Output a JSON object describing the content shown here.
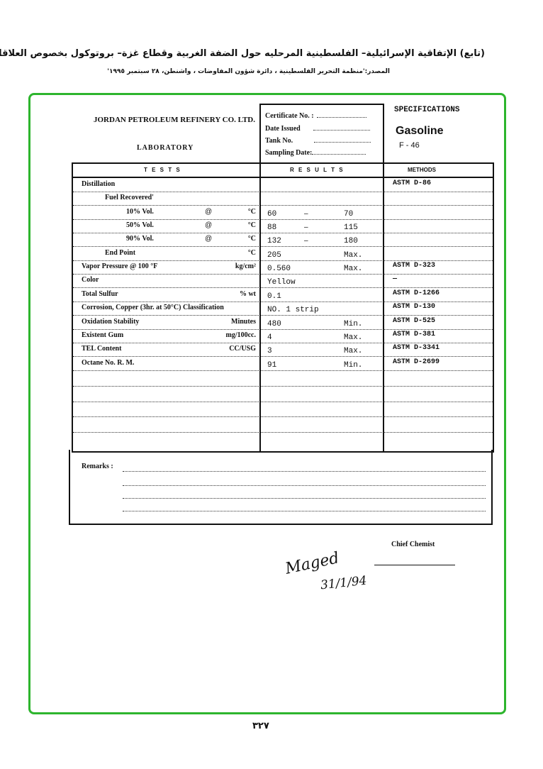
{
  "header": {
    "title_ar": "(تابع) الإتفاقية الإسرائيلية– الفلسطينية المرحليه حول الضفة الغربية وقطاع غزة– بروتوكول بخصوص العلاقات الاقتصادية",
    "source_ar": "المصدر:'منظمة التحرير الفلسطينية ، دائرة شؤون المفاوضات ، واشنطن، ٢٨ سبتمبر ١٩٩٥'"
  },
  "form": {
    "company": "JORDAN PETROLEUM REFINERY CO. LTD.",
    "department": "LABORATORY",
    "certificate_fields": [
      "Certificate No. :",
      "Date Issued",
      "Tank No.",
      "Sampling Date:"
    ],
    "specifications_label": "SPECIFICATIONS",
    "product": "Gasoline",
    "product_code": "F - 46",
    "columns": [
      "T E S T S",
      "R E S U L T S",
      "METHODS"
    ],
    "rows": [
      {
        "test": "Distillation",
        "unit": "",
        "result_low": "",
        "result_high": "",
        "method": "ASTM D-86",
        "indent": 0
      },
      {
        "test": "Fuel Recovered'",
        "unit": "",
        "result_low": "",
        "result_high": "",
        "method": "",
        "indent": 1
      },
      {
        "test": "10% Vol.",
        "at": "@",
        "unit": "°C",
        "result_low": "60",
        "dash": "–",
        "result_high": "70",
        "method": "",
        "indent": 2
      },
      {
        "test": "50% Vol.",
        "at": "@",
        "unit": "°C",
        "result_low": "88",
        "dash": "–",
        "result_high": "115",
        "method": "",
        "indent": 2
      },
      {
        "test": "90% Vol.",
        "at": "@",
        "unit": "°C",
        "result_low": "132",
        "dash": "–",
        "result_high": "180",
        "method": "",
        "indent": 2
      },
      {
        "test": "End Point",
        "unit": "°C",
        "result_low": "205",
        "result_high": "Max.",
        "method": "",
        "indent": 1
      },
      {
        "test": "Vapor Pressure @ 100 °F",
        "unit": "kg/cm²",
        "result_low": "0.560",
        "result_high": "Max.",
        "method": "ASTM D-323",
        "indent": 0
      },
      {
        "test": "Color",
        "unit": "",
        "result_low": "Yellow",
        "result_high": "",
        "method": "—",
        "indent": 0
      },
      {
        "test": "Total Sulfur",
        "unit": "% wt",
        "result_low": "0.1",
        "result_high": "",
        "method": "ASTM D-1266",
        "indent": 0
      },
      {
        "test": "Corrosion, Copper (3hr. at 50°C) Classification",
        "unit": "",
        "result_low": "NO. 1 strip",
        "result_high": "",
        "method": "ASTM D-130",
        "indent": 0
      },
      {
        "test": "Oxidation Stability",
        "unit": "Minutes",
        "result_low": "480",
        "result_high": "Min.",
        "method": "ASTM D-525",
        "indent": 0
      },
      {
        "test": "Existent Gum",
        "unit": "mg/100cc.",
        "result_low": "4",
        "result_high": "Max.",
        "method": "ASTM D-381",
        "indent": 0
      },
      {
        "test": "TEL Content",
        "unit": "CC/USG",
        "result_low": "3",
        "result_high": "Max.",
        "method": "ASTM D-3341",
        "indent": 0
      },
      {
        "test": "Octane No. R. M.",
        "unit": "",
        "result_low": "91",
        "result_high": "Min.",
        "method": "ASTM D-2699",
        "indent": 0
      }
    ],
    "remarks_label": "Remarks :",
    "chief_chemist_label": "Chief Chemist",
    "signature": "Maged",
    "signature_date": "31/1/94"
  },
  "page_number": "٣٢٧",
  "colors": {
    "frame": "#2db52d"
  }
}
